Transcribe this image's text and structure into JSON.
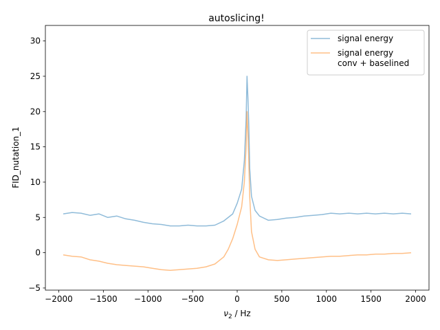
{
  "chart_data": {
    "type": "line",
    "title": "autoslicing!",
    "xlabel_main": "ν",
    "xlabel_sub": "2",
    "xlabel_rest": " / Hz",
    "ylabel": "FID_nutation_1",
    "xlim": [
      -2150,
      2150
    ],
    "ylim": [
      -5.3,
      32.2
    ],
    "x_ticks": [
      -2000,
      -1500,
      -1000,
      -500,
      0,
      500,
      1000,
      1500,
      2000
    ],
    "x_tick_labels": [
      "−2000",
      "−1500",
      "−1000",
      "−500",
      "0",
      "500",
      "1000",
      "1500",
      "2000"
    ],
    "y_ticks": [
      -5,
      0,
      5,
      10,
      15,
      20,
      25,
      30
    ],
    "y_tick_labels": [
      "−5",
      "0",
      "5",
      "10",
      "15",
      "20",
      "25",
      "30"
    ],
    "grid": false,
    "legend_position": "top-right",
    "series": [
      {
        "name": "signal energy",
        "color": "#1f77b4",
        "opacity": 0.5,
        "x": [
          -1950,
          -1850,
          -1750,
          -1650,
          -1550,
          -1450,
          -1350,
          -1250,
          -1150,
          -1050,
          -950,
          -850,
          -750,
          -650,
          -550,
          -450,
          -350,
          -250,
          -150,
          -50,
          0,
          50,
          80,
          100,
          110,
          120,
          130,
          140,
          160,
          200,
          250,
          350,
          450,
          550,
          650,
          750,
          850,
          950,
          1050,
          1150,
          1250,
          1350,
          1450,
          1550,
          1650,
          1750,
          1850,
          1950
        ],
        "y": [
          5.5,
          5.7,
          5.6,
          5.3,
          5.5,
          5.0,
          5.2,
          4.8,
          4.6,
          4.3,
          4.1,
          4.0,
          3.8,
          3.8,
          3.9,
          3.8,
          3.8,
          3.9,
          4.5,
          5.5,
          7.0,
          9.0,
          13.0,
          19.0,
          25.0,
          22.0,
          18.0,
          12.0,
          8.0,
          6.0,
          5.2,
          4.6,
          4.7,
          4.9,
          5.0,
          5.2,
          5.3,
          5.4,
          5.6,
          5.5,
          5.6,
          5.5,
          5.6,
          5.5,
          5.6,
          5.5,
          5.6,
          5.5
        ]
      },
      {
        "name": "signal energy\nconv + baselined",
        "color": "#ff7f0e",
        "opacity": 0.5,
        "x": [
          -1950,
          -1850,
          -1750,
          -1650,
          -1550,
          -1450,
          -1350,
          -1250,
          -1150,
          -1050,
          -950,
          -850,
          -750,
          -650,
          -550,
          -450,
          -350,
          -250,
          -150,
          -100,
          -50,
          0,
          50,
          80,
          100,
          110,
          120,
          130,
          140,
          160,
          200,
          250,
          350,
          450,
          550,
          650,
          750,
          850,
          950,
          1050,
          1150,
          1250,
          1350,
          1450,
          1550,
          1650,
          1750,
          1850,
          1950
        ],
        "y": [
          -0.3,
          -0.5,
          -0.6,
          -1.0,
          -1.2,
          -1.5,
          -1.7,
          -1.8,
          -1.9,
          -2.0,
          -2.2,
          -2.4,
          -2.5,
          -2.4,
          -2.3,
          -2.2,
          -2.0,
          -1.6,
          -0.6,
          0.5,
          2.0,
          4.0,
          6.5,
          10.0,
          15.0,
          20.0,
          17.0,
          13.0,
          8.0,
          3.0,
          0.5,
          -0.6,
          -1.0,
          -1.1,
          -1.0,
          -0.9,
          -0.8,
          -0.7,
          -0.6,
          -0.5,
          -0.5,
          -0.4,
          -0.3,
          -0.3,
          -0.2,
          -0.2,
          -0.1,
          -0.1,
          0.0
        ]
      }
    ]
  }
}
